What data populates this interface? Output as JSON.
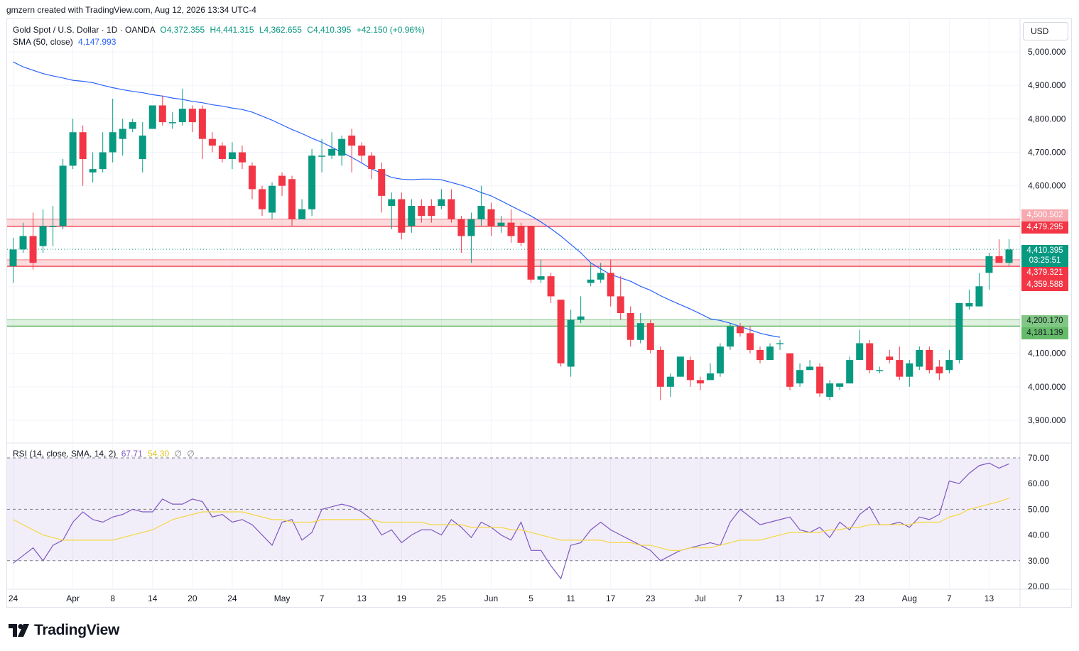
{
  "header": {
    "credit": "gmzern created with TradingView.com, Aug 12, 2026 13:34 UTC-4"
  },
  "legend": {
    "symbol": "Gold Spot / U.S. Dollar · 1D · OANDA",
    "open": "O4,372.355",
    "high": "H4,441.315",
    "low": "L4,362.655",
    "close": "C4,410.395",
    "change": "+42.150 (+0.96%)",
    "sma_label": "SMA (50, close)",
    "sma_value": "4,147.993",
    "rsi_label": "RSI (14, close, SMA, 14, 2)",
    "rsi_value": "67.71",
    "rsi_sma_value": "54.30",
    "rsi_extra1": "∅",
    "rsi_extra2": "∅"
  },
  "currency": "USD",
  "price_badges": {
    "zone_top_upper": "4,500.502",
    "zone_top_lower": "4,479.295",
    "last_price": "4,410.395",
    "countdown": "03:25:51",
    "zone_mid_upper": "4,379.321",
    "zone_mid_lower": "4,359.588",
    "zone_low_upper": "4,200.170",
    "zone_low_lower": "4,181.139"
  },
  "brand": {
    "name": "TradingView"
  },
  "colors": {
    "up": "#089981",
    "down": "#f23645",
    "sma": "#2962ff",
    "rsi": "#7e57c2",
    "rsi_sma": "#f5d742",
    "support_zone": "#4caf50",
    "resistance_zone": "#f23645"
  },
  "chart_data": [
    {
      "type": "candlestick",
      "title": "Gold Spot / U.S. Dollar · 1D · OANDA",
      "y_ticks": [
        "5,000.000",
        "4,900.000",
        "4,800.000",
        "4,700.000",
        "4,600.000",
        "4,500.000",
        "4,400.000",
        "4,300.000",
        "4,200.000",
        "4,100.000",
        "4,000.000",
        "3,900.000"
      ],
      "ylim": [
        3850,
        5110
      ],
      "x_tick_labels": [
        {
          "label": "24",
          "i": 0
        },
        {
          "label": "Apr",
          "i": 6
        },
        {
          "label": "8",
          "i": 10
        },
        {
          "label": "14",
          "i": 14
        },
        {
          "label": "20",
          "i": 18
        },
        {
          "label": "24",
          "i": 22
        },
        {
          "label": "May",
          "i": 27
        },
        {
          "label": "7",
          "i": 31
        },
        {
          "label": "13",
          "i": 35
        },
        {
          "label": "19",
          "i": 39
        },
        {
          "label": "25",
          "i": 43
        },
        {
          "label": "Jun",
          "i": 48
        },
        {
          "label": "5",
          "i": 52
        },
        {
          "label": "11",
          "i": 56
        },
        {
          "label": "17",
          "i": 60
        },
        {
          "label": "23",
          "i": 64
        },
        {
          "label": "Jul",
          "i": 69
        },
        {
          "label": "7",
          "i": 73
        },
        {
          "label": "13",
          "i": 77
        },
        {
          "label": "17",
          "i": 81
        },
        {
          "label": "23",
          "i": 85
        },
        {
          "label": "Aug",
          "i": 90
        },
        {
          "label": "7",
          "i": 94
        },
        {
          "label": "13",
          "i": 98
        }
      ],
      "zones": [
        {
          "upper": 4500.502,
          "lower": 4479.295,
          "kind": "resistance"
        },
        {
          "upper": 4379.321,
          "lower": 4359.588,
          "kind": "resistance"
        },
        {
          "upper": 4200.17,
          "lower": 4181.139,
          "kind": "support"
        }
      ],
      "last_price": 4410.395,
      "candles": [
        [
          4360,
          4410,
          4310,
          4445
        ],
        [
          4410,
          4450,
          4400,
          4490
        ],
        [
          4450,
          4370,
          4350,
          4520
        ],
        [
          4420,
          4480,
          4400,
          4530
        ],
        [
          4480,
          4480,
          4420,
          4540
        ],
        [
          4480,
          4660,
          4470,
          4680
        ],
        [
          4660,
          4760,
          4650,
          4800
        ],
        [
          4760,
          4680,
          4600,
          4780
        ],
        [
          4640,
          4650,
          4610,
          4700
        ],
        [
          4650,
          4700,
          4640,
          4760
        ],
        [
          4700,
          4760,
          4670,
          4860
        ],
        [
          4740,
          4770,
          4690,
          4800
        ],
        [
          4770,
          4790,
          4760,
          4800
        ],
        [
          4680,
          4750,
          4640,
          4790
        ],
        [
          4770,
          4840,
          4770,
          4840
        ],
        [
          4840,
          4790,
          4780,
          4870
        ],
        [
          4790,
          4790,
          4770,
          4820
        ],
        [
          4790,
          4830,
          4780,
          4890
        ],
        [
          4830,
          4790,
          4760,
          4840
        ],
        [
          4830,
          4740,
          4680,
          4840
        ],
        [
          4740,
          4720,
          4700,
          4760
        ],
        [
          4720,
          4680,
          4670,
          4730
        ],
        [
          4680,
          4700,
          4650,
          4730
        ],
        [
          4700,
          4670,
          4650,
          4720
        ],
        [
          4660,
          4590,
          4560,
          4670
        ],
        [
          4590,
          4530,
          4510,
          4600
        ],
        [
          4520,
          4600,
          4500,
          4610
        ],
        [
          4630,
          4600,
          4570,
          4640
        ],
        [
          4620,
          4500,
          4480,
          4630
        ],
        [
          4500,
          4530,
          4500,
          4560
        ],
        [
          4530,
          4690,
          4510,
          4710
        ],
        [
          4690,
          4690,
          4640,
          4740
        ],
        [
          4690,
          4710,
          4680,
          4760
        ],
        [
          4690,
          4740,
          4660,
          4750
        ],
        [
          4750,
          4720,
          4640,
          4770
        ],
        [
          4720,
          4690,
          4670,
          4730
        ],
        [
          4690,
          4650,
          4620,
          4700
        ],
        [
          4650,
          4570,
          4520,
          4670
        ],
        [
          4540,
          4560,
          4470,
          4580
        ],
        [
          4560,
          4460,
          4440,
          4580
        ],
        [
          4480,
          4540,
          4460,
          4560
        ],
        [
          4540,
          4510,
          4490,
          4560
        ],
        [
          4540,
          4510,
          4490,
          4560
        ],
        [
          4540,
          4560,
          4530,
          4590
        ],
        [
          4560,
          4500,
          4490,
          4590
        ],
        [
          4500,
          4450,
          4400,
          4510
        ],
        [
          4450,
          4500,
          4370,
          4520
        ],
        [
          4500,
          4540,
          4480,
          4600
        ],
        [
          4530,
          4480,
          4450,
          4550
        ],
        [
          4480,
          4490,
          4460,
          4510
        ],
        [
          4490,
          4450,
          4430,
          4530
        ],
        [
          4480,
          4430,
          4420,
          4490
        ],
        [
          4480,
          4320,
          4310,
          4480
        ],
        [
          4320,
          4330,
          4310,
          4380
        ],
        [
          4330,
          4270,
          4250,
          4340
        ],
        [
          4260,
          4070,
          4060,
          4260
        ],
        [
          4060,
          4200,
          4030,
          4230
        ],
        [
          4200,
          4210,
          4190,
          4270
        ],
        [
          4310,
          4320,
          4300,
          4370
        ],
        [
          4320,
          4340,
          4310,
          4370
        ],
        [
          4340,
          4270,
          4240,
          4380
        ],
        [
          4270,
          4220,
          4200,
          4330
        ],
        [
          4220,
          4140,
          4120,
          4240
        ],
        [
          4140,
          4190,
          4130,
          4220
        ],
        [
          4190,
          4110,
          4100,
          4200
        ],
        [
          4110,
          4000,
          3960,
          4120
        ],
        [
          4000,
          4030,
          3970,
          4040
        ],
        [
          4030,
          4090,
          4030,
          4090
        ],
        [
          4080,
          4020,
          4000,
          4090
        ],
        [
          4020,
          4010,
          3990,
          4030
        ],
        [
          4020,
          4040,
          4030,
          4070
        ],
        [
          4040,
          4120,
          4030,
          4130
        ],
        [
          4120,
          4180,
          4110,
          4190
        ],
        [
          4180,
          4160,
          4150,
          4190
        ],
        [
          4160,
          4110,
          4100,
          4180
        ],
        [
          4110,
          4080,
          4070,
          4120
        ],
        [
          4080,
          4120,
          4080,
          4130
        ],
        [
          4130,
          4130,
          4110,
          4140
        ],
        [
          4100,
          4000,
          3990,
          4100
        ],
        [
          4010,
          4050,
          4000,
          4070
        ],
        [
          4050,
          4060,
          4050,
          4080
        ],
        [
          4060,
          3980,
          3970,
          4070
        ],
        [
          3970,
          4010,
          3960,
          4020
        ],
        [
          4000,
          4010,
          3990,
          4010
        ],
        [
          4010,
          4080,
          4010,
          4090
        ],
        [
          4080,
          4130,
          4080,
          4170
        ],
        [
          4130,
          4050,
          4040,
          4140
        ],
        [
          4050,
          4050,
          4040,
          4060
        ],
        [
          4090,
          4080,
          4070,
          4110
        ],
        [
          4080,
          4030,
          4020,
          4120
        ],
        [
          4030,
          4070,
          4000,
          4080
        ],
        [
          4060,
          4110,
          4050,
          4120
        ],
        [
          4110,
          4050,
          4040,
          4120
        ],
        [
          4060,
          4040,
          4020,
          4080
        ],
        [
          4050,
          4080,
          4040,
          4110
        ],
        [
          4080,
          4250,
          4070,
          4250
        ],
        [
          4240,
          4250,
          4230,
          4290
        ],
        [
          4240,
          4300,
          4240,
          4340
        ],
        [
          4340,
          4390,
          4290,
          4400
        ],
        [
          4390,
          4370,
          4370,
          4440
        ],
        [
          4370,
          4410,
          4360,
          4441
        ]
      ],
      "sma50": [
        4970,
        4955,
        4945,
        4935,
        4928,
        4922,
        4915,
        4912,
        4908,
        4900,
        4893,
        4887,
        4882,
        4878,
        4872,
        4868,
        4862,
        4858,
        4852,
        4848,
        4842,
        4838,
        4832,
        4828,
        4820,
        4808,
        4796,
        4782,
        4768,
        4756,
        4742,
        4730,
        4715,
        4700,
        4685,
        4668,
        4650,
        4638,
        4625,
        4620,
        4618,
        4620,
        4620,
        4618,
        4610,
        4602,
        4592,
        4580,
        4570,
        4555,
        4540,
        4525,
        4510,
        4492,
        4472,
        4450,
        4425,
        4400,
        4370,
        4352,
        4335,
        4325,
        4315,
        4300,
        4288,
        4272,
        4258,
        4245,
        4232,
        4218,
        4203,
        4198,
        4190,
        4180,
        4170,
        4160,
        4153,
        4148
      ],
      "series": [
        {
          "name": "SMA (50, close)",
          "value": 4147.993
        }
      ]
    },
    {
      "type": "line",
      "title": "RSI (14, close, SMA, 14, 2)",
      "y_ticks": [
        "70.00",
        "60.00",
        "50.00",
        "40.00",
        "30.00",
        "20.00"
      ],
      "ylim": [
        19,
        72
      ],
      "bands": [
        70,
        50,
        30
      ],
      "series": [
        {
          "name": "RSI",
          "values": [
            29,
            32,
            35,
            30,
            36,
            38,
            45,
            49,
            46,
            45,
            47,
            48,
            50,
            49,
            49,
            54,
            52,
            52,
            54,
            53,
            47,
            48,
            45,
            46,
            44,
            40,
            36,
            45,
            46,
            38,
            41,
            50,
            51,
            52,
            51,
            49,
            46,
            40,
            42,
            37,
            40,
            42,
            42,
            40,
            46,
            43,
            39,
            45,
            43,
            40,
            38,
            45,
            34,
            34,
            28,
            23,
            36,
            37,
            42,
            45,
            42,
            40,
            38,
            36,
            34,
            30,
            32,
            34,
            35,
            36,
            37,
            36,
            45,
            50,
            47,
            44,
            45,
            46,
            47,
            42,
            41,
            43,
            39,
            45,
            42,
            48,
            51,
            44,
            44,
            45,
            43,
            47,
            46,
            48,
            61,
            60,
            64,
            67,
            68,
            66,
            67.71
          ]
        },
        {
          "name": "RSI-based MA",
          "values": [
            46,
            44,
            42,
            40,
            39,
            38,
            38,
            38,
            38,
            38,
            38,
            39,
            40,
            41,
            42,
            44,
            46,
            47,
            48,
            49,
            49,
            49,
            49,
            49,
            48,
            47,
            46,
            46,
            45,
            45,
            45,
            46,
            46,
            46,
            46,
            46,
            46,
            45,
            45,
            45,
            45,
            45,
            44,
            44,
            44,
            44,
            43,
            43,
            43,
            43,
            42,
            42,
            41,
            40,
            39,
            38,
            38,
            38,
            38,
            38,
            37,
            37,
            37,
            36,
            36,
            35,
            34,
            34,
            35,
            35,
            35,
            36,
            37,
            38,
            38,
            38,
            39,
            40,
            41,
            41,
            41,
            41,
            42,
            42,
            43,
            43,
            44,
            44,
            44,
            44,
            44,
            45,
            45,
            45,
            47,
            48,
            50,
            51,
            52,
            53,
            54.3
          ]
        }
      ]
    }
  ]
}
